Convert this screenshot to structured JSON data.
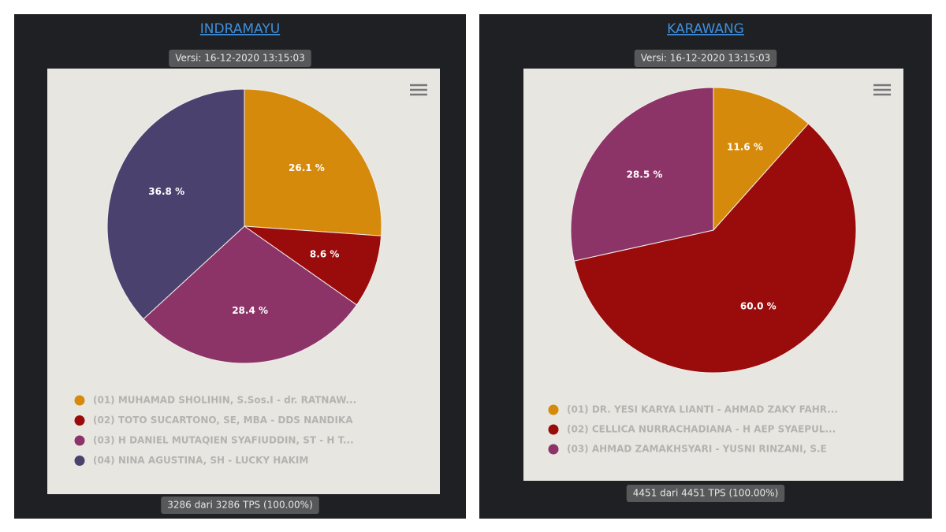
{
  "chart_data": [
    {
      "type": "pie",
      "title": "INDRAMAYU",
      "subtitle": "Versi: 16-12-2020 13:15:03",
      "annotations": [
        "3286 dari 3286 TPS (100.00%)"
      ],
      "categories": [
        "(01) MUHAMAD SHOLIHIN, S.Sos.I - dr. RATNAW...",
        "(02) TOTO SUCARTONO, SE, MBA - DDS NANDIKA",
        "(03) H DANIEL MUTAQIEN SYAFIUDDIN, ST - H T...",
        "(04) NINA AGUSTINA, SH - LUCKY HAKIM"
      ],
      "values": [
        26.1,
        8.6,
        28.4,
        36.8
      ],
      "value_labels": [
        "26.1 %",
        "8.6 %",
        "28.4 %",
        "36.8 %"
      ],
      "colors": [
        "#d68a0c",
        "#9a0b0b",
        "#8c3468",
        "#4b416f"
      ]
    },
    {
      "type": "pie",
      "title": "KARAWANG",
      "subtitle": "Versi: 16-12-2020 13:15:03",
      "annotations": [
        "4451 dari 4451 TPS (100.00%)"
      ],
      "categories": [
        "(01) DR. YESI KARYA LIANTI - AHMAD ZAKY FAHR...",
        "(02) CELLICA NURRACHADIANA - H AEP SYAEPUL...",
        "(03) AHMAD ZAMAKHSYARI - YUSNI RINZANI, S.E"
      ],
      "values": [
        11.6,
        60,
        28.5
      ],
      "value_labels": [
        "11.6 %",
        "60.0 %",
        "28.5 %"
      ],
      "colors": [
        "#d68a0c",
        "#9a0b0b",
        "#8c3468"
      ]
    }
  ]
}
